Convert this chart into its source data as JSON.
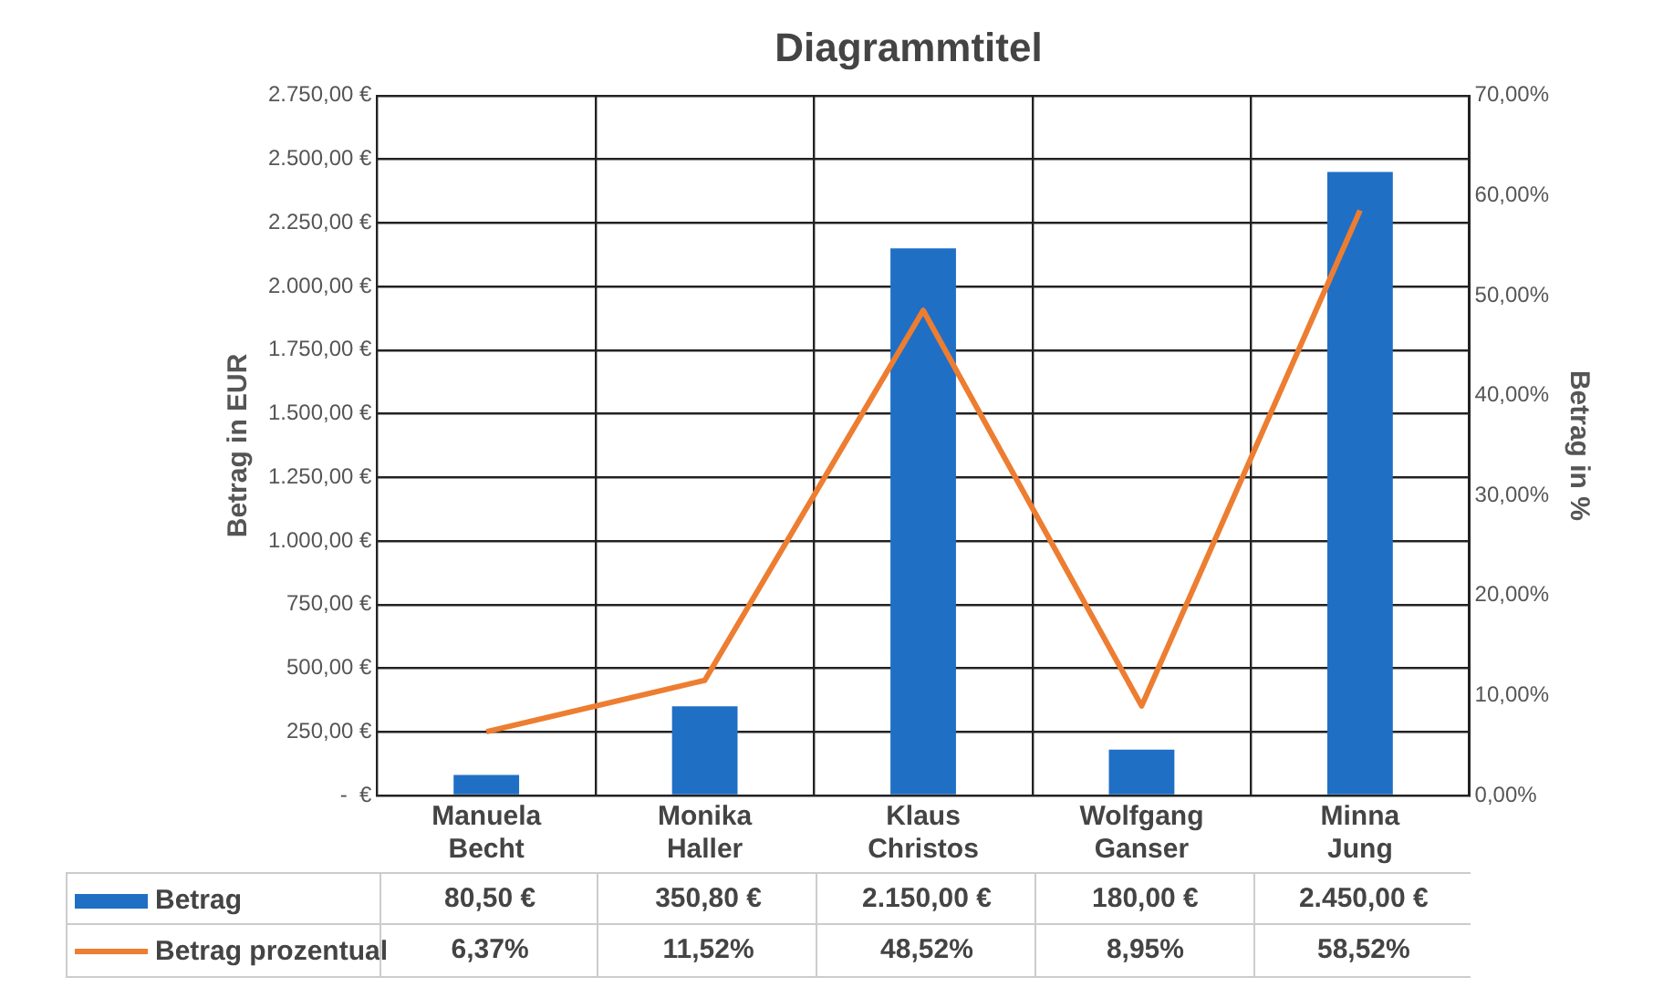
{
  "chart_data": {
    "type": "bar",
    "title": "Diagrammtitel",
    "ylabel": "Betrag in EUR",
    "y2label": "Betrag in %",
    "categories": [
      "Manuela Becht",
      "Monika Haller",
      "Klaus Christos",
      "Wolfgang Ganser",
      "Minna Jung"
    ],
    "series": [
      {
        "name": "Betrag",
        "color": "#1f6fc5",
        "values": [
          80.5,
          350.8,
          2150,
          180,
          2450
        ],
        "value_labels": [
          "80,50 €",
          "350,80 €",
          "2.150,00 €",
          "180,00 €",
          "2.450,00 €"
        ]
      },
      {
        "name": "Betrag prozentual",
        "type": "line",
        "axis": "y2",
        "color": "#ed7d31",
        "values": [
          6.37,
          11.52,
          48.52,
          8.95,
          58.52
        ],
        "value_labels": [
          "6,37%",
          "11,52%",
          "48,52%",
          "8,95%",
          "58,52%"
        ]
      }
    ],
    "ylim": [
      0,
      2750
    ],
    "yticks": [
      {
        "value": 0,
        "label": "-  €"
      },
      {
        "value": 250,
        "label": "250,00 €"
      },
      {
        "value": 500,
        "label": "500,00 €"
      },
      {
        "value": 750,
        "label": "750,00 €"
      },
      {
        "value": 1000,
        "label": "1.000,00 €"
      },
      {
        "value": 1250,
        "label": "1.250,00 €"
      },
      {
        "value": 1500,
        "label": "1.500,00 €"
      },
      {
        "value": 1750,
        "label": "1.750,00 €"
      },
      {
        "value": 2000,
        "label": "2.000,00 €"
      },
      {
        "value": 2250,
        "label": "2.250,00 €"
      },
      {
        "value": 2500,
        "label": "2.500,00 €"
      },
      {
        "value": 2750,
        "label": "2.750,00 €"
      }
    ],
    "y2lim": [
      0,
      70
    ],
    "y2ticks": [
      {
        "value": 0,
        "label": "0,00%"
      },
      {
        "value": 10,
        "label": "10,00%"
      },
      {
        "value": 20,
        "label": "20,00%"
      },
      {
        "value": 30,
        "label": "30,00%"
      },
      {
        "value": 40,
        "label": "40,00%"
      },
      {
        "value": 50,
        "label": "50,00%"
      },
      {
        "value": 60,
        "label": "60,00%"
      },
      {
        "value": 70,
        "label": "70,00%"
      }
    ],
    "grid": true,
    "legend": "bottom",
    "marker": "none",
    "line_style": "solid"
  }
}
